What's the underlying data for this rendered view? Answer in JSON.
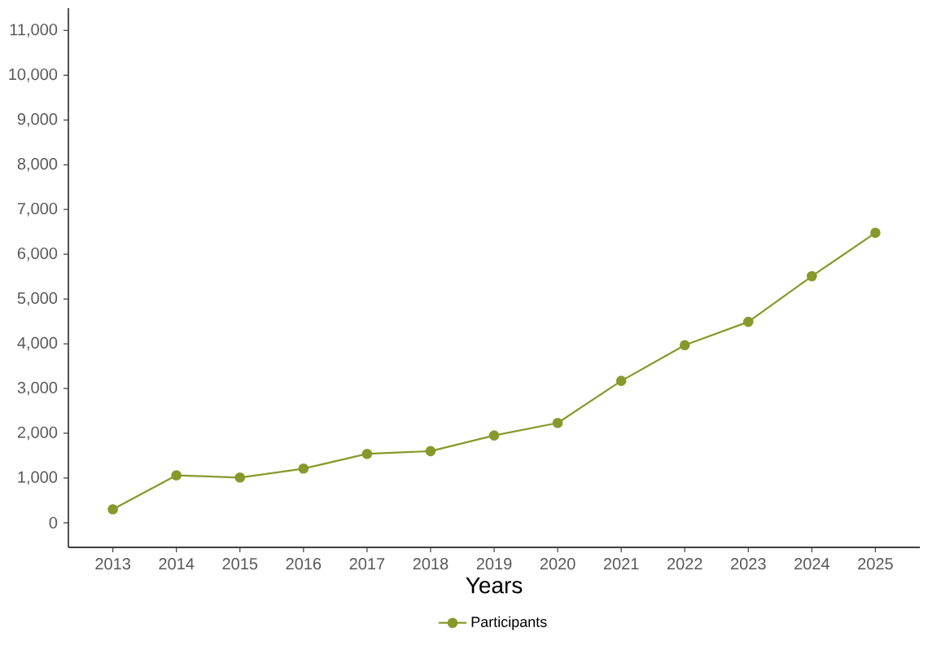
{
  "chart_data": {
    "type": "line",
    "xlabel": "Years",
    "categories": [
      "2013",
      "2014",
      "2015",
      "2016",
      "2017",
      "2018",
      "2019",
      "2020",
      "2021",
      "2022",
      "2023",
      "2024",
      "2025"
    ],
    "series": [
      {
        "name": "Participants",
        "color": "#87992b",
        "values": [
          300,
          1060,
          1010,
          1210,
          1540,
          1600,
          1950,
          2230,
          3170,
          3970,
          4490,
          5510,
          6480
        ]
      }
    ],
    "ylim": [
      -550,
      11500
    ],
    "yticks": [
      0,
      {
        "value": 1000,
        "label": "1,000"
      },
      {
        "value": 2000,
        "label": "2,000"
      },
      {
        "value": 3000,
        "label": "3,000"
      },
      {
        "value": 4000,
        "label": "4,000"
      },
      {
        "value": 5000,
        "label": "5,000"
      },
      {
        "value": 6000,
        "label": "6,000"
      },
      {
        "value": 7000,
        "label": "7,000"
      },
      {
        "value": 8000,
        "label": "8,000"
      },
      {
        "value": 9000,
        "label": "9,000"
      },
      {
        "value": 10000,
        "label": "10,000"
      },
      {
        "value": 11000,
        "label": "11,000"
      }
    ],
    "grid": false,
    "legend": "bottom",
    "marker": "circle",
    "line_style": "solid"
  }
}
